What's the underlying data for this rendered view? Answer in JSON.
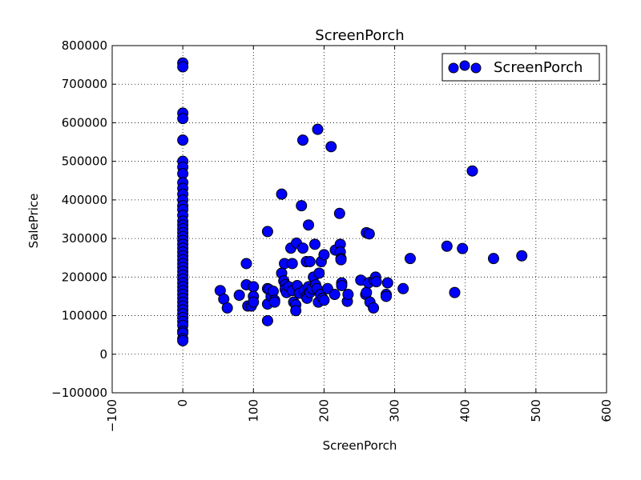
{
  "chart_data": {
    "type": "scatter",
    "title": "ScreenPorch",
    "xlabel": "ScreenPorch",
    "ylabel": "SalePrice",
    "xlim": [
      -100,
      600
    ],
    "ylim": [
      -100000,
      800000
    ],
    "xticks": [
      -100,
      0,
      100,
      200,
      300,
      400,
      500,
      600
    ],
    "yticks": [
      -100000,
      0,
      100000,
      200000,
      300000,
      400000,
      500000,
      600000,
      700000,
      800000
    ],
    "grid": true,
    "legend": {
      "position": "top-right",
      "entries": [
        "ScreenPorch"
      ]
    },
    "colors": {
      "marker_fill": "#0000ff",
      "marker_edge": "#000000"
    },
    "series": [
      {
        "name": "ScreenPorch",
        "points": [
          [
            0,
            755000
          ],
          [
            0,
            745000
          ],
          [
            0,
            625000
          ],
          [
            0,
            611000
          ],
          [
            0,
            555000
          ],
          [
            0,
            500000
          ],
          [
            0,
            485000
          ],
          [
            0,
            468000
          ],
          [
            0,
            445000
          ],
          [
            0,
            430000
          ],
          [
            0,
            415000
          ],
          [
            0,
            400000
          ],
          [
            0,
            385000
          ],
          [
            0,
            375000
          ],
          [
            0,
            360000
          ],
          [
            0,
            345000
          ],
          [
            0,
            335000
          ],
          [
            0,
            325000
          ],
          [
            0,
            315000
          ],
          [
            0,
            305000
          ],
          [
            0,
            295000
          ],
          [
            0,
            285000
          ],
          [
            0,
            275000
          ],
          [
            0,
            265000
          ],
          [
            0,
            255000
          ],
          [
            0,
            245000
          ],
          [
            0,
            235000
          ],
          [
            0,
            225000
          ],
          [
            0,
            215000
          ],
          [
            0,
            205000
          ],
          [
            0,
            195000
          ],
          [
            0,
            185000
          ],
          [
            0,
            175000
          ],
          [
            0,
            165000
          ],
          [
            0,
            155000
          ],
          [
            0,
            145000
          ],
          [
            0,
            135000
          ],
          [
            0,
            125000
          ],
          [
            0,
            115000
          ],
          [
            0,
            105000
          ],
          [
            0,
            95000
          ],
          [
            0,
            85000
          ],
          [
            0,
            75000
          ],
          [
            0,
            60000
          ],
          [
            0,
            55000
          ],
          [
            0,
            40000
          ],
          [
            0,
            35000
          ],
          [
            53,
            165000
          ],
          [
            58,
            143000
          ],
          [
            63,
            120000
          ],
          [
            80,
            153000
          ],
          [
            90,
            235000
          ],
          [
            90,
            180000
          ],
          [
            92,
            125000
          ],
          [
            97,
            125000
          ],
          [
            100,
            175000
          ],
          [
            100,
            150000
          ],
          [
            100,
            135000
          ],
          [
            120,
            318000
          ],
          [
            120,
            170000
          ],
          [
            120,
            130000
          ],
          [
            120,
            87000
          ],
          [
            122,
            168000
          ],
          [
            125,
            150000
          ],
          [
            128,
            163000
          ],
          [
            130,
            140000
          ],
          [
            130,
            135000
          ],
          [
            140,
            415000
          ],
          [
            140,
            210000
          ],
          [
            143,
            190000
          ],
          [
            144,
            235000
          ],
          [
            145,
            180000
          ],
          [
            145,
            168000
          ],
          [
            147,
            160000
          ],
          [
            150,
            175000
          ],
          [
            153,
            275000
          ],
          [
            155,
            235000
          ],
          [
            155,
            165000
          ],
          [
            157,
            135000
          ],
          [
            160,
            128000
          ],
          [
            160,
            113000
          ],
          [
            161,
            288000
          ],
          [
            162,
            178000
          ],
          [
            165,
            158000
          ],
          [
            168,
            385000
          ],
          [
            170,
            555000
          ],
          [
            170,
            275000
          ],
          [
            172,
            165000
          ],
          [
            175,
            240000
          ],
          [
            175,
            150000
          ],
          [
            176,
            145000
          ],
          [
            178,
            335000
          ],
          [
            178,
            175000
          ],
          [
            180,
            240000
          ],
          [
            180,
            160000
          ],
          [
            183,
            170000
          ],
          [
            185,
            200000
          ],
          [
            187,
            285000
          ],
          [
            188,
            180000
          ],
          [
            190,
            170000
          ],
          [
            191,
            583000
          ],
          [
            192,
            135000
          ],
          [
            193,
            210000
          ],
          [
            195,
            155000
          ],
          [
            196,
            240000
          ],
          [
            198,
            145000
          ],
          [
            200,
            140000
          ],
          [
            200,
            258000
          ],
          [
            205,
            170000
          ],
          [
            210,
            538000
          ],
          [
            215,
            155000
          ],
          [
            216,
            270000
          ],
          [
            222,
            365000
          ],
          [
            223,
            285000
          ],
          [
            223,
            265000
          ],
          [
            224,
            248000
          ],
          [
            224,
            245000
          ],
          [
            225,
            185000
          ],
          [
            225,
            178000
          ],
          [
            233,
            137000
          ],
          [
            234,
            155000
          ],
          [
            252,
            192000
          ],
          [
            259,
            155000
          ],
          [
            260,
            315000
          ],
          [
            260,
            160000
          ],
          [
            263,
            185000
          ],
          [
            264,
            312000
          ],
          [
            265,
            135000
          ],
          [
            270,
            120000
          ],
          [
            271,
            192000
          ],
          [
            273,
            200000
          ],
          [
            274,
            188000
          ],
          [
            288,
            155000
          ],
          [
            288,
            150000
          ],
          [
            290,
            185000
          ],
          [
            312,
            170000
          ],
          [
            322,
            248000
          ],
          [
            374,
            280000
          ],
          [
            385,
            160000
          ],
          [
            396,
            274000
          ],
          [
            410,
            475000
          ],
          [
            440,
            248000
          ],
          [
            480,
            255000
          ]
        ]
      }
    ]
  }
}
